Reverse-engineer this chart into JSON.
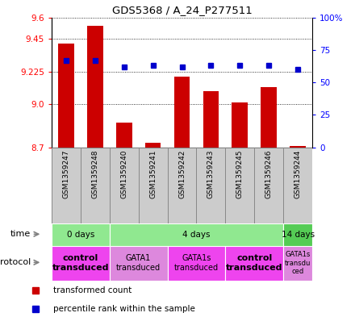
{
  "title": "GDS5368 / A_24_P277511",
  "samples": [
    "GSM1359247",
    "GSM1359248",
    "GSM1359240",
    "GSM1359241",
    "GSM1359242",
    "GSM1359243",
    "GSM1359245",
    "GSM1359246",
    "GSM1359244"
  ],
  "transformed_count": [
    9.42,
    9.54,
    8.87,
    8.73,
    9.19,
    9.09,
    9.01,
    9.12,
    8.71
  ],
  "percentile_rank": [
    67,
    67,
    62,
    63,
    62,
    63,
    63,
    63,
    60
  ],
  "ylim": [
    8.7,
    9.6
  ],
  "yticks_left": [
    8.7,
    9.0,
    9.225,
    9.45,
    9.6
  ],
  "yticks_right_vals": [
    0,
    25,
    50,
    75,
    100
  ],
  "bar_color": "#cc0000",
  "dot_color": "#0000cc",
  "bar_base": 8.7,
  "time_groups": [
    {
      "label": "0 days",
      "start": 0,
      "end": 2,
      "color": "#90e890"
    },
    {
      "label": "4 days",
      "start": 2,
      "end": 8,
      "color": "#90e890"
    },
    {
      "label": "14 days",
      "start": 8,
      "end": 9,
      "color": "#55cc55"
    }
  ],
  "protocol_groups": [
    {
      "label": "control\ntransduced",
      "start": 0,
      "end": 2,
      "color": "#ee44ee",
      "bold": true,
      "fontsize": 8
    },
    {
      "label": "GATA1\ntransduced",
      "start": 2,
      "end": 4,
      "color": "#dd88dd",
      "bold": false,
      "fontsize": 7
    },
    {
      "label": "GATA1s\ntransduced",
      "start": 4,
      "end": 6,
      "color": "#ee44ee",
      "bold": false,
      "fontsize": 7
    },
    {
      "label": "control\ntransduced",
      "start": 6,
      "end": 8,
      "color": "#ee44ee",
      "bold": true,
      "fontsize": 8
    },
    {
      "label": "GATA1s\ntransdu\nced",
      "start": 8,
      "end": 9,
      "color": "#dd88dd",
      "bold": false,
      "fontsize": 6
    }
  ],
  "legend_items": [
    {
      "color": "#cc0000",
      "label": "transformed count"
    },
    {
      "color": "#0000cc",
      "label": "percentile rank within the sample"
    }
  ],
  "cell_color": "#cccccc",
  "cell_border": "#888888"
}
